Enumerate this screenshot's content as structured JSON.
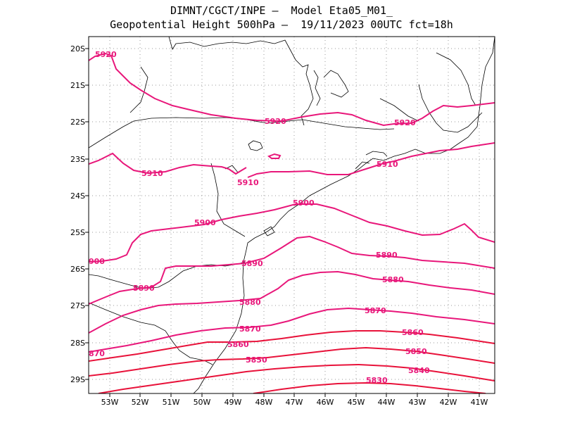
{
  "header": {
    "line1": "DIMNT/CGCT/INPE –  Model Eta05_M01_",
    "line2": "Geopotential Height 500hPa –  19/11/2023 00UTC fct=18h"
  },
  "map": {
    "lat_labels": [
      "20S",
      "21S",
      "22S",
      "23S",
      "24S",
      "25S",
      "26S",
      "27S",
      "28S",
      "29S"
    ],
    "lon_labels": [
      "53W",
      "52W",
      "51W",
      "50W",
      "49W",
      "48W",
      "47W",
      "46W",
      "45W",
      "44W",
      "43W",
      "42W",
      "41W"
    ],
    "contour_labels": [
      {
        "text": "5920",
        "color": "#e8177a"
      },
      {
        "text": "5920",
        "color": "#e8177a"
      },
      {
        "text": "5920",
        "color": "#e8177a"
      },
      {
        "text": "5910",
        "color": "#e8177a"
      },
      {
        "text": "5910",
        "color": "#e8177a"
      },
      {
        "text": "5910",
        "color": "#e8177a"
      },
      {
        "text": "5900",
        "color": "#e8177a"
      },
      {
        "text": "5900",
        "color": "#e8177a"
      },
      {
        "text": "900",
        "color": "#e8177a"
      },
      {
        "text": "5890",
        "color": "#e8177a"
      },
      {
        "text": "5890",
        "color": "#e8177a"
      },
      {
        "text": "5890",
        "color": "#e8177a"
      },
      {
        "text": "5880",
        "color": "#e8177a"
      },
      {
        "text": "5880",
        "color": "#e8177a"
      },
      {
        "text": "5870",
        "color": "#e8177a"
      },
      {
        "text": "5870",
        "color": "#e8177a"
      },
      {
        "text": "5860",
        "color": "#e8177a"
      },
      {
        "text": "5860",
        "color": "#e8177a"
      },
      {
        "text": "870",
        "color": "#e8177a"
      },
      {
        "text": "5850",
        "color": "#e8177a"
      },
      {
        "text": "5850",
        "color": "#e8177a"
      },
      {
        "text": "5840",
        "color": "#e8177a"
      },
      {
        "text": "5830",
        "color": "#e8177a"
      }
    ],
    "colors": {
      "contour": "#e8177a",
      "contour_deep": "#e8123a",
      "coast": "#000000",
      "grid": "#9a9a9a"
    }
  }
}
